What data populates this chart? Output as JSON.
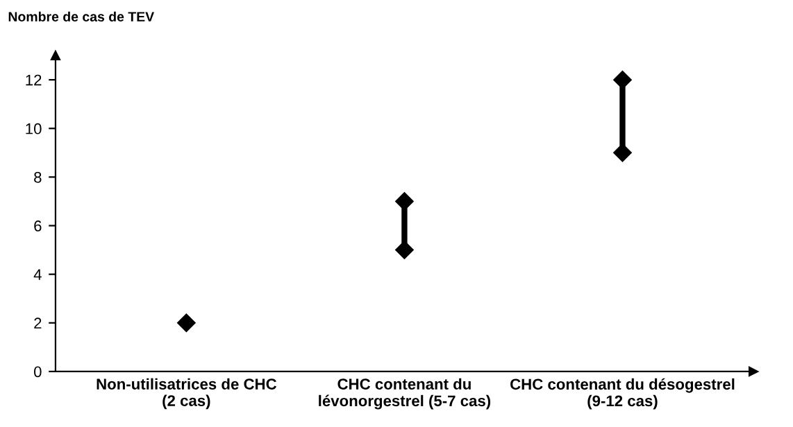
{
  "chart_data": {
    "type": "line",
    "ylabel": "Nombre de cas de TEV",
    "categories": [
      "Non-utilisatrices de CHC\n(2 cas)",
      "CHC contenant du\nlévonorgestrel (5-7 cas)",
      "CHC contenant du désogestrel\n(9-12 cas)"
    ],
    "series": [
      {
        "color": "#000000",
        "x": [
          "Non-utilisatrices de CHC\n(2 cas)"
        ],
        "values": [
          2
        ]
      },
      {
        "color": "#000000",
        "x": [
          "CHC contenant du\nlévonorgestrel (5-7 cas)",
          "CHC contenant du\nlévonorgestrel (5-7 cas)"
        ],
        "values": [
          5,
          7
        ]
      },
      {
        "color": "#000000",
        "x": [
          "CHC contenant du désogestrel\n(9-12 cas)",
          "CHC contenant du désogestrel\n(9-12 cas)"
        ],
        "values": [
          9,
          12
        ]
      }
    ],
    "ylim": [
      0,
      13
    ],
    "yticks": [
      0,
      2,
      4,
      6,
      8,
      10,
      12
    ],
    "marker": "diamond",
    "line_style": "solid",
    "grid": false,
    "legend": false
  }
}
